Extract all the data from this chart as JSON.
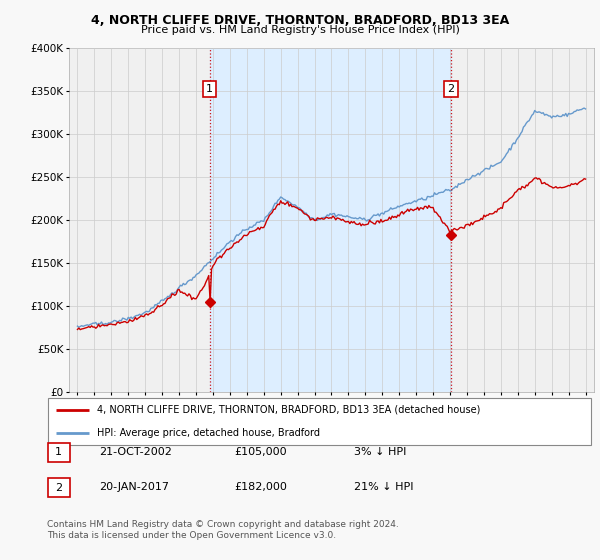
{
  "title": "4, NORTH CLIFFE DRIVE, THORNTON, BRADFORD, BD13 3EA",
  "subtitle": "Price paid vs. HM Land Registry's House Price Index (HPI)",
  "legend_line1": "4, NORTH CLIFFE DRIVE, THORNTON, BRADFORD, BD13 3EA (detached house)",
  "legend_line2": "HPI: Average price, detached house, Bradford",
  "footnote_line1": "Contains HM Land Registry data © Crown copyright and database right 2024.",
  "footnote_line2": "This data is licensed under the Open Government Licence v3.0.",
  "sale1_label": "1",
  "sale1_date": "21-OCT-2002",
  "sale1_price": "£105,000",
  "sale1_hpi": "3% ↓ HPI",
  "sale1_year": 2002.8,
  "sale1_value": 105000,
  "sale2_label": "2",
  "sale2_date": "20-JAN-2017",
  "sale2_price": "£182,000",
  "sale2_hpi": "21% ↓ HPI",
  "sale2_year": 2017.05,
  "sale2_value": 182000,
  "ylim_min": 0,
  "ylim_max": 400000,
  "xlim_min": 1994.5,
  "xlim_max": 2025.5,
  "yticks": [
    0,
    50000,
    100000,
    150000,
    200000,
    250000,
    300000,
    350000,
    400000
  ],
  "ytick_labels": [
    "£0",
    "£50K",
    "£100K",
    "£150K",
    "£200K",
    "£250K",
    "£300K",
    "£350K",
    "£400K"
  ],
  "xticks": [
    1995,
    1996,
    1997,
    1998,
    1999,
    2000,
    2001,
    2002,
    2003,
    2004,
    2005,
    2006,
    2007,
    2008,
    2009,
    2010,
    2011,
    2012,
    2013,
    2014,
    2015,
    2016,
    2017,
    2018,
    2019,
    2020,
    2021,
    2022,
    2023,
    2024,
    2025
  ],
  "hpi_color": "#6699cc",
  "price_color": "#cc0000",
  "shade_color": "#ddeeff",
  "background_color": "#f8f8f8",
  "plot_bg_color": "#f0f0f0",
  "grid_color": "#cccccc",
  "sale_box_color": "#cc0000",
  "hpi_anchors_years": [
    1995,
    1996,
    1997,
    1998,
    1999,
    2000,
    2001,
    2002,
    2003,
    2004,
    2005,
    2006,
    2007,
    2008,
    2009,
    2010,
    2011,
    2012,
    2013,
    2014,
    2015,
    2016,
    2017,
    2018,
    2019,
    2020,
    2021,
    2022,
    2023,
    2024,
    2025
  ],
  "hpi_anchors_vals": [
    75000,
    78000,
    82000,
    87000,
    95000,
    108000,
    123000,
    138000,
    158000,
    178000,
    192000,
    202000,
    230000,
    218000,
    202000,
    208000,
    205000,
    202000,
    207000,
    216000,
    222000,
    228000,
    235000,
    248000,
    258000,
    268000,
    295000,
    325000,
    318000,
    322000,
    330000
  ],
  "price_anchors_years": [
    1995,
    1996,
    1997,
    1998,
    1999,
    2000,
    2001,
    2002,
    2003,
    2004,
    2005,
    2006,
    2007,
    2008,
    2009,
    2010,
    2011,
    2012,
    2013,
    2014,
    2015,
    2016,
    2017,
    2018,
    2019,
    2020,
    2021,
    2022,
    2023,
    2024,
    2025
  ],
  "price_anchors_vals": [
    73000,
    76000,
    80000,
    85000,
    93000,
    105000,
    120000,
    108000,
    148000,
    170000,
    185000,
    195000,
    225000,
    215000,
    198000,
    202000,
    198000,
    196000,
    200000,
    208000,
    215000,
    220000,
    190000,
    200000,
    210000,
    220000,
    240000,
    255000,
    245000,
    248000,
    255000
  ]
}
